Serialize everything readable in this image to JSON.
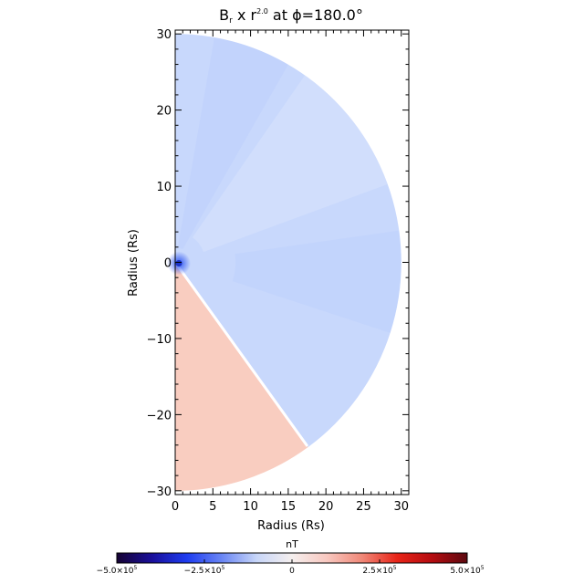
{
  "chart_data": {
    "type": "heatmap",
    "title": {
      "main": "B",
      "main_sub": "r",
      "mid": " x r",
      "mid_sup": "2.0",
      "rest": " at ϕ=180.0°"
    },
    "xlabel": "Radius (Rs)",
    "ylabel": "Radius (Rs)",
    "xlim": [
      0,
      31
    ],
    "ylim": [
      -30.5,
      30.5
    ],
    "x_ticks": [
      "0",
      "5",
      "10",
      "15",
      "20",
      "25",
      "30"
    ],
    "y_ticks": [
      "30",
      "20",
      "10",
      "0",
      "−10",
      "−20",
      "−30"
    ],
    "domain": {
      "shape": "half-disk",
      "outer_radius": 30,
      "current_sheet_angle_deg": -54
    },
    "regions": [
      {
        "name": "positive",
        "angle_from_deg": -90,
        "angle_to_deg": -54,
        "value_approx": 50000,
        "color": "#f9cdc0"
      },
      {
        "name": "negative",
        "angle_from_deg": -54,
        "angle_to_deg": 90,
        "value_approx": -50000,
        "color": "#c8d8fc"
      }
    ],
    "colorbar": {
      "label": "nT",
      "min": -500000,
      "max": 500000,
      "tick_labels": [
        "−5.0×10",
        "−2.5×10",
        "0",
        "2.5×10",
        "5.0×10"
      ],
      "tick_exp": "5",
      "tick_values": [
        -500000,
        -250000,
        0,
        250000,
        500000
      ],
      "colors": [
        "#160333",
        "#1a0f9a",
        "#1e3cf0",
        "#6a86f4",
        "#c8d6f8",
        "#f5efee",
        "#f8c8c0",
        "#f08878",
        "#e82418",
        "#b40c10",
        "#5c0a10"
      ]
    }
  }
}
